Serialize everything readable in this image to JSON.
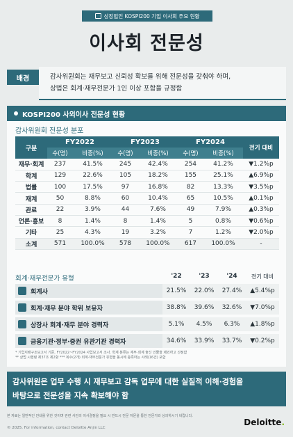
{
  "badge": "상장법인 KOSPI200 기업 이사회 주요 현황",
  "title": "이사회 전문성",
  "background": {
    "tag": "배경",
    "line1": "감사위원회는 재무보고 신뢰성 확보를 위해 전문성을 갖춰야 하며,",
    "line2": "상법은 회계·재무전문가 1인 이상 포함을 규정함"
  },
  "panel": {
    "heading": "KOSPI200 사외이사 전문성 현황",
    "section1": "감사위원회 전문성 분포",
    "col_category": "구분",
    "years": [
      "FY2022",
      "FY2023",
      "FY2024"
    ],
    "sub_count": "수(명)",
    "sub_ratio": "비중(%)",
    "col_change": "전기 대비",
    "rows": [
      {
        "label": "재무·회계",
        "v": [
          "237",
          "41.5%",
          "245",
          "42.4%",
          "254",
          "41.2%"
        ],
        "chg": "▼1.2%p"
      },
      {
        "label": "학계",
        "v": [
          "129",
          "22.6%",
          "105",
          "18.2%",
          "155",
          "25.1%"
        ],
        "chg": "▲6.9%p"
      },
      {
        "label": "법률",
        "v": [
          "100",
          "17.5%",
          "97",
          "16.8%",
          "82",
          "13.3%"
        ],
        "chg": "▼3.5%p"
      },
      {
        "label": "재계",
        "v": [
          "50",
          "8.8%",
          "60",
          "10.4%",
          "65",
          "10.5%"
        ],
        "chg": "▲0.1%p"
      },
      {
        "label": "관료",
        "v": [
          "22",
          "3.9%",
          "44",
          "7.6%",
          "49",
          "7.9%"
        ],
        "chg": "▲0.3%p"
      },
      {
        "label": "언론·홍보",
        "v": [
          "8",
          "1.4%",
          "8",
          "1.4%",
          "5",
          "0.8%"
        ],
        "chg": "▼0.6%p"
      },
      {
        "label": "기타",
        "v": [
          "25",
          "4.3%",
          "19",
          "3.2%",
          "7",
          "1.2%"
        ],
        "chg": "▼2.0%p"
      },
      {
        "label": "소계",
        "v": [
          "571",
          "100.0%",
          "578",
          "100.0%",
          "617",
          "100.0%"
        ],
        "chg": "-"
      }
    ],
    "section2": "회계·재무전문가 유형",
    "years2": [
      "'22",
      "'23",
      "'24"
    ],
    "col_change2": "전기 대비",
    "types": [
      {
        "label": "회계사",
        "v": [
          "21.5%",
          "22.0%",
          "27.4%"
        ],
        "chg": "▲5.4%p"
      },
      {
        "label": "회계·재무 분야 학위 보유자",
        "v": [
          "38.8%",
          "39.6%",
          "32.6%"
        ],
        "chg": "▼7.0%p"
      },
      {
        "label": "상장사 회계·재무 분야 경력자",
        "v": [
          "5.1%",
          "4.5%",
          "6.3%"
        ],
        "chg": "▲1.8%p"
      },
      {
        "label": "금융기관·정부·증권 유관기관 경력자",
        "v": [
          "34.6%",
          "33.9%",
          "33.7%"
        ],
        "chg": "▼0.2%p"
      }
    ],
    "note1": "* 기업지배구조보고서 기준, FY2022~FY2024 사업보고서 조사. 학계 분류는 재무·회계 출신 인물을 제외하고 산정함",
    "note2": "** 상법 시행령 제37조 제2항  *** 복수(2개) 회계·재무전문가 유형을 동시에 충족하는 사례(16건) 포함"
  },
  "bottom": {
    "line1": "감사위원은 업무 수행 시 재무보고 감독 업무에 대한 실질적 이해·경험을",
    "line2": "바탕으로 전문성을 지속 확보해야 함"
  },
  "disclaimer": "본 자료는 일반적인 안내를 위한 것이며 관련 사안의 이사결정을 필요 시 반드시 전문 자문을 통한 전문가와 상의하시기 바랍니다.",
  "footer": "© 2025. For information, contact Deloitte Anjin LLC",
  "brand": "Deloitte",
  "brand_dot": "."
}
